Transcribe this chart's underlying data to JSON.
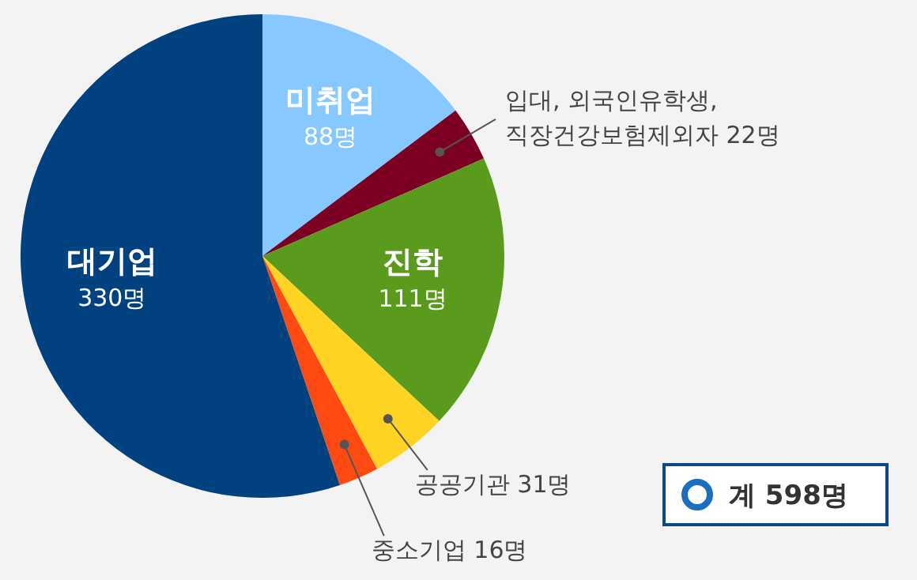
{
  "chart_data": {
    "type": "pie",
    "categories": [
      "미취업",
      "입대, 외국인유학생, 직장건강보험제외자",
      "진학",
      "공공기관",
      "중소기업",
      "대기업"
    ],
    "values": [
      88,
      22,
      111,
      31,
      16,
      330
    ],
    "colors": [
      "#86c8ff",
      "#7b0022",
      "#5a9b1d",
      "#ffd322",
      "#ff4a12",
      "#00427f"
    ],
    "value_labels": [
      "88명",
      "22명",
      "111명",
      "31명",
      "16명",
      "330명"
    ],
    "legend": false,
    "annotations": [
      "계 598명"
    ]
  }
}
